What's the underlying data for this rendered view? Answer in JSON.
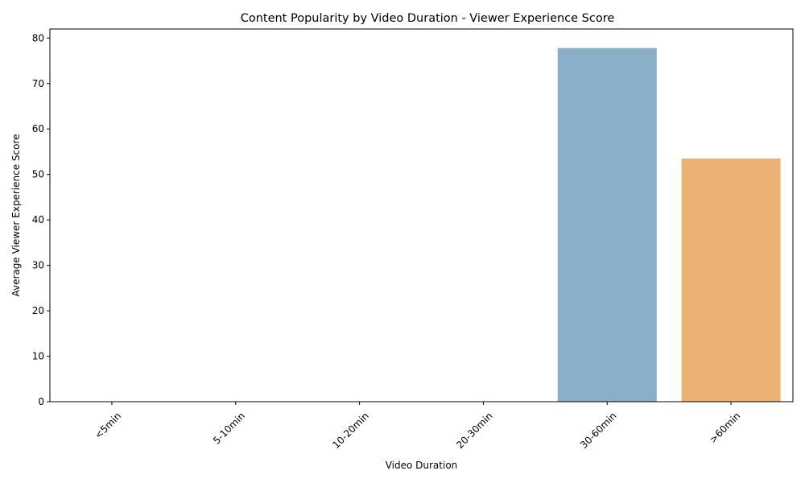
{
  "chart_data": {
    "type": "bar",
    "title": "Content Popularity by Video Duration - Viewer Experience Score",
    "xlabel": "Video Duration",
    "ylabel": "Average Viewer Experience Score",
    "categories": [
      "<5min",
      "5-10min",
      "10-20min",
      "20-30min",
      "30-60min",
      ">60min"
    ],
    "values": [
      0,
      0,
      0,
      0,
      77.8,
      53.5
    ],
    "colors": [
      "#8aafc8",
      "#8aafc8",
      "#8aafc8",
      "#8aafc8",
      "#8aafc8",
      "#ebb373"
    ],
    "ylim": [
      0,
      82
    ],
    "yticks": [
      0,
      10,
      20,
      30,
      40,
      50,
      60,
      70,
      80
    ],
    "grid": false,
    "legend": "none"
  }
}
